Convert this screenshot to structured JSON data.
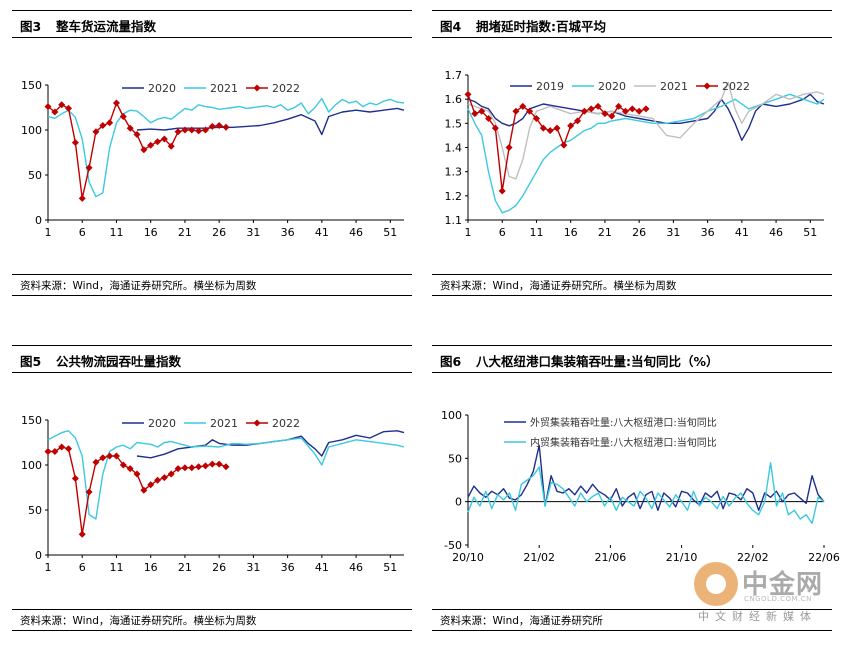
{
  "panels": [
    {
      "fig_no": "图3",
      "title": "整车货运流量指数",
      "source": "资料来源：Wind，海通证券研究所。横坐标为周数"
    },
    {
      "fig_no": "图4",
      "title": "拥堵延时指数:百城平均",
      "source": "资料来源：Wind，海通证券研究所。横坐标为周数"
    },
    {
      "fig_no": "图5",
      "title": "公共物流园吞吐量指数",
      "source": "资料来源：Wind，海通证券研究所。横坐标为周数"
    },
    {
      "fig_no": "图6",
      "title": "八大枢纽港口集装箱吞吐量:当旬同比（%）",
      "source": "资料来源：Wind，海通证券研究所"
    }
  ],
  "watermark": {
    "name": "中金网",
    "url": "CNGOLD.COM.CN",
    "slogan": "中文财经新媒体"
  },
  "colors": {
    "y2019": "#1f2f8f",
    "y2020": "#1f2f8f",
    "y2021": "#3cc9e0",
    "y2022": "#c00000",
    "y2020_panel4": "#3cc9e0",
    "y2021_panel4": "#bfbfbf"
  },
  "chart_data": [
    {
      "type": "line",
      "xticks": [
        "1",
        "6",
        "11",
        "16",
        "21",
        "26",
        "31",
        "36",
        "41",
        "46",
        "51"
      ],
      "xlim": [
        1,
        53
      ],
      "ylim": [
        0,
        150
      ],
      "yticks": [
        "0",
        "50",
        "100",
        "150"
      ],
      "legend_position": "top",
      "series": [
        {
          "name": "2020",
          "color": "#1f2f8f",
          "marker": false,
          "x": [
            14,
            16,
            18,
            20,
            22,
            24,
            26,
            28,
            30,
            32,
            34,
            36,
            38,
            40,
            41,
            42,
            44,
            46,
            48,
            50,
            52,
            53
          ],
          "y": [
            100,
            101,
            100,
            102,
            102,
            102,
            103,
            103,
            104,
            105,
            108,
            112,
            117,
            110,
            95,
            115,
            120,
            122,
            120,
            122,
            124,
            122
          ]
        },
        {
          "name": "2021",
          "color": "#3cc9e0",
          "marker": false,
          "x": [
            1,
            2,
            3,
            4,
            5,
            6,
            7,
            8,
            9,
            10,
            11,
            12,
            13,
            14,
            15,
            16,
            17,
            18,
            19,
            20,
            21,
            22,
            23,
            24,
            25,
            26,
            27,
            28,
            29,
            30,
            31,
            32,
            33,
            34,
            35,
            36,
            37,
            38,
            39,
            40,
            41,
            42,
            43,
            44,
            45,
            46,
            47,
            48,
            49,
            50,
            51,
            52,
            53
          ],
          "y": [
            115,
            113,
            118,
            122,
            114,
            90,
            42,
            26,
            30,
            80,
            108,
            118,
            122,
            121,
            115,
            108,
            112,
            114,
            112,
            118,
            124,
            122,
            128,
            126,
            125,
            123,
            124,
            125,
            126,
            124,
            125,
            126,
            127,
            125,
            128,
            122,
            125,
            130,
            118,
            125,
            135,
            120,
            128,
            134,
            130,
            132,
            126,
            130,
            128,
            132,
            134,
            131,
            130
          ]
        },
        {
          "name": "2022",
          "color": "#c00000",
          "marker": true,
          "x": [
            1,
            2,
            3,
            4,
            5,
            6,
            7,
            8,
            9,
            10,
            11,
            12,
            13,
            14,
            15,
            16,
            17,
            18,
            19,
            20,
            21,
            22,
            23,
            24,
            25,
            26,
            27
          ],
          "y": [
            126,
            120,
            128,
            124,
            86,
            24,
            58,
            98,
            105,
            108,
            130,
            115,
            102,
            95,
            78,
            83,
            87,
            90,
            82,
            98,
            100,
            100,
            99,
            100,
            104,
            105,
            103
          ]
        }
      ]
    },
    {
      "type": "line",
      "xticks": [
        "1",
        "6",
        "11",
        "16",
        "21",
        "26",
        "31",
        "36",
        "41",
        "46",
        "51"
      ],
      "xlim": [
        1,
        53
      ],
      "ylim": [
        1.1,
        1.7
      ],
      "yticks": [
        "1.1",
        "1.2",
        "1.3",
        "1.4",
        "1.5",
        "1.6",
        "1.7"
      ],
      "legend_position": "top",
      "series": [
        {
          "name": "2019",
          "color": "#1f2f8f",
          "marker": false,
          "x": [
            1,
            2,
            3,
            4,
            5,
            6,
            7,
            8,
            9,
            10,
            12,
            14,
            16,
            18,
            20,
            22,
            24,
            26,
            28,
            30,
            32,
            34,
            36,
            37,
            38,
            39,
            40,
            41,
            42,
            43,
            44,
            46,
            48,
            50,
            51,
            52,
            53
          ],
          "y": [
            1.6,
            1.59,
            1.57,
            1.56,
            1.52,
            1.5,
            1.49,
            1.5,
            1.52,
            1.56,
            1.58,
            1.57,
            1.56,
            1.55,
            1.54,
            1.55,
            1.53,
            1.52,
            1.51,
            1.5,
            1.5,
            1.51,
            1.52,
            1.55,
            1.6,
            1.56,
            1.5,
            1.43,
            1.48,
            1.55,
            1.58,
            1.57,
            1.58,
            1.6,
            1.62,
            1.59,
            1.58
          ]
        },
        {
          "name": "2020",
          "color": "#3cc9e0",
          "marker": false,
          "x": [
            1,
            2,
            3,
            4,
            5,
            6,
            7,
            8,
            9,
            10,
            11,
            12,
            13,
            14,
            15,
            16,
            17,
            18,
            19,
            20,
            21,
            22,
            24,
            26,
            28,
            30,
            32,
            34,
            36,
            38,
            40,
            42,
            44,
            46,
            48,
            50,
            52,
            53
          ],
          "y": [
            1.56,
            1.5,
            1.45,
            1.3,
            1.18,
            1.13,
            1.14,
            1.16,
            1.2,
            1.25,
            1.3,
            1.35,
            1.38,
            1.4,
            1.42,
            1.43,
            1.45,
            1.47,
            1.48,
            1.5,
            1.5,
            1.51,
            1.52,
            1.51,
            1.5,
            1.5,
            1.51,
            1.52,
            1.55,
            1.57,
            1.6,
            1.56,
            1.58,
            1.6,
            1.62,
            1.6,
            1.58,
            1.6
          ]
        },
        {
          "name": "2021",
          "color": "#bfbfbf",
          "marker": false,
          "x": [
            1,
            2,
            3,
            4,
            5,
            6,
            7,
            8,
            9,
            10,
            11,
            12,
            13,
            14,
            15,
            16,
            18,
            20,
            22,
            24,
            26,
            28,
            30,
            32,
            34,
            36,
            38,
            39,
            40,
            41,
            42,
            44,
            46,
            48,
            50,
            52,
            53
          ],
          "y": [
            1.58,
            1.57,
            1.56,
            1.55,
            1.5,
            1.4,
            1.28,
            1.27,
            1.35,
            1.48,
            1.55,
            1.56,
            1.57,
            1.56,
            1.55,
            1.54,
            1.55,
            1.54,
            1.55,
            1.54,
            1.53,
            1.52,
            1.45,
            1.44,
            1.5,
            1.55,
            1.6,
            1.67,
            1.56,
            1.5,
            1.55,
            1.58,
            1.62,
            1.6,
            1.62,
            1.63,
            1.62
          ]
        },
        {
          "name": "2022",
          "color": "#c00000",
          "marker": true,
          "x": [
            1,
            2,
            3,
            4,
            5,
            6,
            7,
            8,
            9,
            10,
            11,
            12,
            13,
            14,
            15,
            16,
            17,
            18,
            19,
            20,
            21,
            22,
            23,
            24,
            25,
            26,
            27
          ],
          "y": [
            1.62,
            1.54,
            1.55,
            1.52,
            1.48,
            1.22,
            1.4,
            1.55,
            1.57,
            1.55,
            1.52,
            1.48,
            1.47,
            1.48,
            1.41,
            1.49,
            1.51,
            1.55,
            1.56,
            1.57,
            1.54,
            1.53,
            1.57,
            1.55,
            1.56,
            1.55,
            1.56
          ]
        }
      ]
    },
    {
      "type": "line",
      "xticks": [
        "1",
        "6",
        "11",
        "16",
        "21",
        "26",
        "31",
        "36",
        "41",
        "46",
        "51"
      ],
      "xlim": [
        1,
        53
      ],
      "ylim": [
        0,
        150
      ],
      "yticks": [
        "0",
        "50",
        "100",
        "150"
      ],
      "legend_position": "top",
      "series": [
        {
          "name": "2020",
          "color": "#1f2f8f",
          "marker": false,
          "x": [
            14,
            16,
            18,
            20,
            22,
            24,
            25,
            26,
            28,
            30,
            32,
            34,
            36,
            38,
            39,
            40,
            41,
            42,
            44,
            46,
            48,
            50,
            52,
            53
          ],
          "y": [
            110,
            108,
            112,
            118,
            120,
            122,
            128,
            124,
            122,
            122,
            124,
            126,
            128,
            132,
            124,
            118,
            110,
            125,
            128,
            133,
            130,
            137,
            138,
            136
          ]
        },
        {
          "name": "2021",
          "color": "#3cc9e0",
          "marker": false,
          "x": [
            1,
            2,
            3,
            4,
            5,
            6,
            7,
            8,
            9,
            10,
            11,
            12,
            13,
            14,
            15,
            16,
            17,
            18,
            19,
            20,
            21,
            22,
            24,
            26,
            28,
            30,
            32,
            34,
            36,
            38,
            40,
            41,
            42,
            44,
            46,
            48,
            50,
            52,
            53
          ],
          "y": [
            128,
            132,
            136,
            138,
            130,
            110,
            45,
            40,
            90,
            115,
            120,
            122,
            118,
            125,
            124,
            123,
            120,
            125,
            126,
            124,
            122,
            120,
            121,
            120,
            124,
            123,
            124,
            126,
            128,
            130,
            112,
            100,
            120,
            124,
            128,
            126,
            124,
            122,
            120
          ]
        },
        {
          "name": "2022",
          "color": "#c00000",
          "marker": true,
          "x": [
            1,
            2,
            3,
            4,
            5,
            6,
            7,
            8,
            9,
            10,
            11,
            12,
            13,
            14,
            15,
            16,
            17,
            18,
            19,
            20,
            21,
            22,
            23,
            24,
            25,
            26,
            27
          ],
          "y": [
            115,
            115,
            120,
            118,
            85,
            23,
            70,
            103,
            108,
            110,
            110,
            100,
            96,
            90,
            72,
            78,
            83,
            86,
            90,
            96,
            97,
            97,
            98,
            99,
            101,
            101,
            98
          ]
        }
      ]
    },
    {
      "type": "line",
      "xticks": [
        "20/10",
        "21/02",
        "21/06",
        "21/10",
        "22/02",
        "22/06"
      ],
      "xlim": [
        0,
        60
      ],
      "ylim": [
        -50,
        100
      ],
      "yticks": [
        "-50",
        "0",
        "50",
        "100"
      ],
      "legend_position": "top-left",
      "series": [
        {
          "name": "外贸集装箱吞吐量:八大枢纽港口:当旬同比",
          "color": "#1f2f8f",
          "marker": false,
          "x": [
            0,
            1,
            2,
            3,
            4,
            5,
            6,
            7,
            8,
            9,
            10,
            11,
            12,
            13,
            14,
            15,
            16,
            17,
            18,
            19,
            20,
            21,
            22,
            23,
            24,
            25,
            26,
            27,
            28,
            29,
            30,
            31,
            32,
            33,
            34,
            35,
            36,
            37,
            38,
            39,
            40,
            41,
            42,
            43,
            44,
            45,
            46,
            47,
            48,
            49,
            50,
            51,
            52,
            53,
            54,
            55,
            56,
            57,
            58,
            59,
            60
          ],
          "y": [
            5,
            18,
            10,
            5,
            12,
            8,
            15,
            4,
            2,
            8,
            20,
            35,
            65,
            -5,
            30,
            12,
            10,
            15,
            8,
            18,
            10,
            20,
            12,
            8,
            2,
            15,
            -5,
            5,
            10,
            -8,
            8,
            12,
            -10,
            10,
            4,
            -6,
            12,
            10,
            2,
            -4,
            10,
            5,
            12,
            -8,
            10,
            8,
            2,
            15,
            10,
            -10,
            10,
            5,
            12,
            0,
            8,
            10,
            4,
            -2,
            30,
            8,
            0
          ]
        },
        {
          "name": "内贸集装箱吞吐量:八大枢纽港口:当旬同比",
          "color": "#3cc9e0",
          "marker": false,
          "x": [
            0,
            1,
            2,
            3,
            4,
            5,
            6,
            7,
            8,
            9,
            10,
            11,
            12,
            13,
            14,
            15,
            16,
            17,
            18,
            19,
            20,
            21,
            22,
            23,
            24,
            25,
            26,
            27,
            28,
            29,
            30,
            31,
            32,
            33,
            34,
            35,
            36,
            37,
            38,
            39,
            40,
            41,
            42,
            43,
            44,
            45,
            46,
            47,
            48,
            49,
            50,
            51,
            52,
            53,
            54,
            55,
            56,
            57,
            58,
            59,
            60
          ],
          "y": [
            -12,
            5,
            -5,
            12,
            -8,
            8,
            2,
            10,
            -10,
            20,
            25,
            30,
            40,
            -5,
            22,
            20,
            15,
            5,
            -5,
            10,
            0,
            6,
            10,
            -5,
            5,
            -10,
            5,
            0,
            -5,
            12,
            4,
            -8,
            10,
            2,
            -6,
            8,
            0,
            -10,
            12,
            -5,
            5,
            0,
            -8,
            6,
            -5,
            4,
            10,
            -2,
            -10,
            -15,
            0,
            45,
            -5,
            10,
            -15,
            -10,
            -20,
            -15,
            -25,
            5,
            0
          ]
        }
      ]
    }
  ]
}
